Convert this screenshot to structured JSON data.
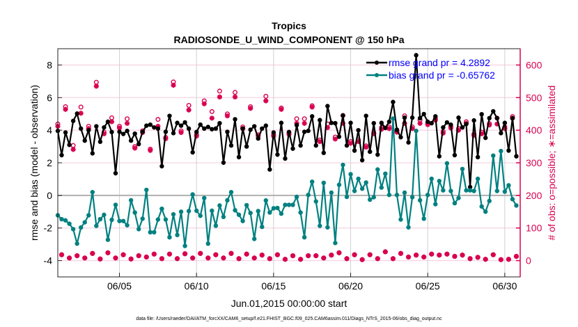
{
  "chart_data": {
    "type": "line",
    "title": "Tropics",
    "subtitle": "RADIOSONDE_U_WIND_COMPONENT @ 150 hPa",
    "xlabel": "Jun.01,2015 00:00:00 start",
    "ylabel": "rmse and bias (model - observation)",
    "ylabel_right": "# of obs: o=possible; ∗=assimilated",
    "footer": "data file: /Users/raeder/DAI/ATM_forcXX/CAM6_setup/f.e21.FHIST_BGC.f09_025.CAM6assim.011/Diags_NTrS_2015-06/obs_diag_output.nc",
    "x_units": "days since Jun.01,2015 00:00",
    "x_step_days": 0.25,
    "xlim": [
      0,
      30
    ],
    "ylim": [
      -5,
      9
    ],
    "ylim_right": [
      -50,
      650
    ],
    "x_ticks": [
      {
        "day": 4,
        "label": "06/05"
      },
      {
        "day": 9,
        "label": "06/10"
      },
      {
        "day": 14,
        "label": "06/15"
      },
      {
        "day": 19,
        "label": "06/20"
      },
      {
        "day": 24,
        "label": "06/25"
      },
      {
        "day": 29,
        "label": "06/30"
      }
    ],
    "y_ticks": [
      "-4",
      "-2",
      "0",
      "2",
      "4",
      "6",
      "8"
    ],
    "y_ticks_right": [
      "0",
      "100",
      "200",
      "300",
      "400",
      "500",
      "600"
    ],
    "grid": true,
    "legend_position": "top-right",
    "colors": {
      "rmse": "#000000",
      "bias": "#008080",
      "obs": "#d8004f",
      "legend_text": "#0000ff",
      "grid_v": "#d0d0d0",
      "grid_h": "#f5c8dc",
      "zero": "#b0b0b0"
    },
    "series": [
      {
        "name": "rmse",
        "legend": "rmse grand pr = 4.2892",
        "axis": "left",
        "values": [
          3.96,
          2.47,
          3.86,
          3.1,
          4.57,
          5.02,
          4.1,
          3.36,
          4.0,
          2.58,
          4.24,
          3.29,
          4.17,
          4.52,
          3.89,
          1.36,
          3.9,
          3.77,
          3.96,
          3.36,
          3.79,
          3.15,
          3.9,
          4.28,
          4.34,
          4.17,
          4.1,
          1.79,
          3.9,
          4.88,
          3.82,
          4.45,
          4.28,
          4.48,
          4.1,
          2.64,
          3.89,
          4.34,
          4.1,
          4.2,
          4.06,
          4.1,
          4.43,
          2.01,
          3.9,
          3.06,
          4.67,
          2.35,
          4.1,
          3.0,
          4.03,
          4.24,
          3.49,
          4.1,
          4.28,
          1.59,
          3.86,
          2.5,
          4.45,
          2.26,
          3.89,
          2.87,
          4.31,
          3.06,
          3.9,
          3.96,
          4.85,
          3.06,
          4.62,
          2.61,
          5.48,
          4.45,
          4.43,
          3.6,
          4.91,
          3.06,
          4.45,
          2.75,
          4.0,
          2.16,
          4.88,
          2.68,
          4.43,
          2.5,
          4.45,
          4.14,
          4.52,
          5.73,
          4.03,
          3.57,
          4.77,
          3.25,
          4.77,
          8.6,
          4.74,
          4.99,
          4.52,
          4.43,
          4.85,
          2.4,
          4.17,
          4.48,
          4.34,
          2.47,
          4.77,
          4.17,
          4.38,
          0.51,
          4.6,
          2.35,
          4.98,
          3.53,
          4.74,
          5.16,
          4.74,
          3.82,
          4.45,
          2.75,
          4.74,
          2.4
        ]
      },
      {
        "name": "bias",
        "legend": "bias grand pr = -0.65762",
        "axis": "left",
        "values": [
          -1.22,
          -1.46,
          -1.53,
          -1.74,
          -2.07,
          -2.96,
          -1.97,
          -1.65,
          -1.22,
          0.2,
          -1.87,
          -1.46,
          -1.19,
          -2.72,
          -1.5,
          -0.58,
          -1.57,
          -1.57,
          -1.83,
          -0.3,
          -1.05,
          -2.07,
          -1.43,
          0.34,
          -2.26,
          -2.26,
          -1.48,
          -0.82,
          -1.48,
          -2.57,
          -1.16,
          -2.43,
          -1.0,
          -3.1,
          -0.96,
          0.06,
          -0.94,
          -1.25,
          -0.16,
          -2.96,
          -0.94,
          -1.86,
          -0.62,
          -1.32,
          -0.3,
          0.2,
          -0.91,
          -1.19,
          -1.57,
          -0.6,
          -1.08,
          -2.67,
          -0.96,
          -1.93,
          -0.31,
          -1.05,
          -0.79,
          -0.77,
          -1.12,
          -0.58,
          -0.58,
          -0.58,
          -0.09,
          -1.05,
          -2.57,
          0.03,
          0.84,
          -0.37,
          -1.87,
          0.77,
          -1.96,
          0.17,
          -2.92,
          0.65,
          1.87,
          -0.09,
          1.3,
          0.27,
          1.02,
          0.41,
          0.79,
          -0.26,
          -0.11,
          1.59,
          0.48,
          1.33,
          0.03,
          4.71,
          0.03,
          -1.48,
          0.17,
          -1.96,
          -0.11,
          3.96,
          -0.3,
          -1.43,
          0.03,
          1.02,
          -0.54,
          0.88,
          0.31,
          1.97,
          0.27,
          -0.48,
          -0.16,
          1.62,
          0.31,
          0.31,
          0.27,
          1.02,
          -0.68,
          -1.0,
          -0.34,
          2.44,
          0.27,
          2.72,
          0.23,
          0.62,
          -0.23,
          -0.62
        ]
      },
      {
        "name": "obs_assimilated",
        "axis": "right",
        "values": [
          412,
          18,
          464,
          8,
          341,
          15,
          452,
          8,
          405,
          22,
          535,
          5,
          389,
          24,
          426,
          8,
          407,
          18,
          421,
          5,
          345,
          15,
          393,
          11,
          338,
          20,
          412,
          6,
          374,
          20,
          538,
          6,
          393,
          21,
          462,
          8,
          382,
          22,
          481,
          8,
          437,
          18,
          502,
          8,
          444,
          22,
          502,
          6,
          405,
          20,
          467,
          8,
          382,
          17,
          490,
          6,
          382,
          18,
          464,
          4,
          387,
          15,
          421,
          4,
          421,
          15,
          471,
          15,
          365,
          8,
          408,
          17,
          373,
          24,
          421,
          6,
          360,
          18,
          365,
          3,
          348,
          18,
          389,
          6,
          403,
          27,
          405,
          6,
          394,
          22,
          421,
          11,
          405,
          17,
          421,
          11,
          417,
          20,
          431,
          17,
          391,
          20,
          407,
          13,
          400,
          17,
          421,
          6,
          384,
          10,
          389,
          4,
          416,
          18,
          419,
          3,
          405,
          4,
          437,
          13
        ]
      },
      {
        "name": "obs_possible",
        "axis": "right",
        "values": [
          419,
          18,
          472,
          8,
          353,
          15,
          471,
          8,
          412,
          22,
          547,
          5,
          394,
          24,
          438,
          8,
          412,
          18,
          435,
          5,
          350,
          15,
          398,
          11,
          342,
          20,
          433,
          6,
          378,
          20,
          548,
          6,
          398,
          21,
          476,
          8,
          386,
          22,
          490,
          8,
          457,
          18,
          520,
          8,
          450,
          22,
          516,
          6,
          410,
          20,
          472,
          8,
          386,
          17,
          504,
          6,
          386,
          18,
          468,
          4,
          392,
          15,
          435,
          4,
          435,
          15,
          475,
          15,
          370,
          8,
          419,
          17,
          379,
          24,
          445,
          6,
          365,
          18,
          370,
          3,
          352,
          18,
          393,
          6,
          408,
          27,
          410,
          6,
          398,
          22,
          444,
          11,
          410,
          17,
          431,
          11,
          422,
          20,
          436,
          17,
          396,
          20,
          412,
          13,
          405,
          17,
          426,
          6,
          388,
          10,
          394,
          4,
          420,
          18,
          437,
          3,
          410,
          4,
          442,
          13
        ]
      }
    ]
  }
}
